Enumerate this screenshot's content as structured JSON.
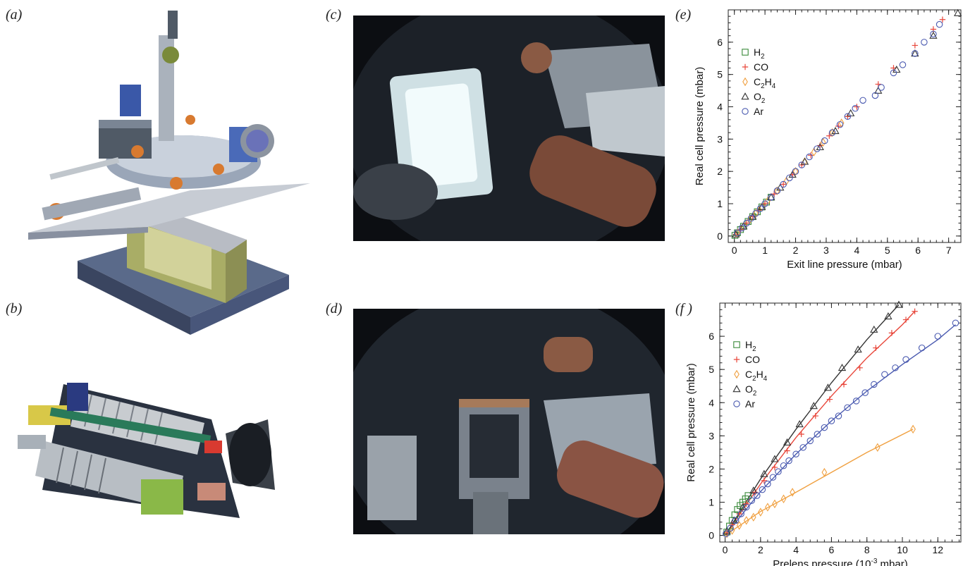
{
  "panels": {
    "a": "(a)",
    "b": "(b)",
    "c": "(c)",
    "d": "(d)",
    "e": "(e)",
    "f": "(f )"
  },
  "images": {
    "a": "cad-render-of-experimental-apparatus",
    "b": "cad-cutaway-of-electron-analyser-lens",
    "c": "photo-of-reaction-cell-inside-chamber",
    "d": "photo-of-sample-holder-inside-chamber"
  },
  "chart_data": [
    {
      "id": "e",
      "type": "scatter",
      "xlabel": "Exit line pressure (mbar)",
      "ylabel": "Real cell pressure (mbar)",
      "xlim": [
        -0.2,
        7.4
      ],
      "ylim": [
        -0.2,
        7.0
      ],
      "xticks": [
        0,
        1,
        2,
        3,
        4,
        5,
        6,
        7
      ],
      "yticks": [
        0,
        1,
        2,
        3,
        4,
        5,
        6
      ],
      "legend_position": "top-left",
      "series": [
        {
          "name": "H2",
          "sub": "2",
          "base": "H",
          "marker": "square",
          "color": "#3a8a3a",
          "x": [
            0.02,
            0.1,
            0.2,
            0.3,
            0.45,
            0.6,
            0.75,
            0.9,
            1.05,
            1.2
          ],
          "y": [
            0.02,
            0.1,
            0.2,
            0.3,
            0.45,
            0.6,
            0.75,
            0.9,
            1.05,
            1.2
          ]
        },
        {
          "name": "CO",
          "marker": "plus",
          "color": "#e8463a",
          "x": [
            0.05,
            0.2,
            0.4,
            0.6,
            0.8,
            1.0,
            1.3,
            1.6,
            1.9,
            2.2,
            2.5,
            2.8,
            3.1,
            3.4,
            3.7,
            4.0,
            4.7,
            5.2,
            5.9,
            6.5,
            6.8
          ],
          "y": [
            0.05,
            0.2,
            0.4,
            0.6,
            0.8,
            1.0,
            1.3,
            1.6,
            1.9,
            2.2,
            2.5,
            2.8,
            3.1,
            3.4,
            3.7,
            4.0,
            4.7,
            5.2,
            5.9,
            6.4,
            6.7
          ]
        },
        {
          "name": "C2H4",
          "sub": "2",
          "base": "C",
          "tail": "H",
          "tailsub": "4",
          "marker": "diamond",
          "color": "#f0a040",
          "x": [
            0.1,
            0.3,
            0.5,
            0.7,
            0.9,
            1.1,
            1.4,
            1.7,
            2.0,
            2.3,
            2.6,
            2.9,
            3.2,
            3.5
          ],
          "y": [
            0.1,
            0.3,
            0.5,
            0.7,
            0.9,
            1.1,
            1.4,
            1.7,
            2.0,
            2.3,
            2.6,
            2.9,
            3.2,
            3.5
          ]
        },
        {
          "name": "O2",
          "sub": "2",
          "base": "O",
          "marker": "triangle",
          "color": "#333333",
          "x": [
            0.05,
            0.3,
            0.6,
            0.9,
            1.2,
            1.5,
            1.9,
            2.3,
            2.8,
            3.3,
            3.8,
            4.7,
            5.3,
            5.9,
            6.5,
            7.3
          ],
          "y": [
            0.05,
            0.3,
            0.6,
            0.9,
            1.2,
            1.5,
            1.9,
            2.3,
            2.75,
            3.25,
            3.8,
            4.5,
            5.15,
            5.65,
            6.2,
            6.9
          ]
        },
        {
          "name": "Ar",
          "marker": "circle",
          "color": "#4a5ab0",
          "x": [
            0.1,
            0.25,
            0.4,
            0.55,
            0.7,
            0.85,
            1.0,
            1.2,
            1.4,
            1.6,
            1.8,
            2.0,
            2.2,
            2.45,
            2.7,
            2.95,
            3.2,
            3.45,
            3.7,
            3.95,
            4.2,
            4.6,
            4.8,
            5.2,
            5.5,
            5.9,
            6.2,
            6.5,
            6.7
          ],
          "y": [
            0.1,
            0.25,
            0.4,
            0.55,
            0.7,
            0.85,
            1.0,
            1.2,
            1.4,
            1.6,
            1.8,
            2.0,
            2.2,
            2.45,
            2.7,
            2.95,
            3.2,
            3.45,
            3.7,
            3.95,
            4.2,
            4.35,
            4.6,
            5.05,
            5.3,
            5.65,
            6.0,
            6.25,
            6.55
          ]
        }
      ]
    },
    {
      "id": "f",
      "type": "scatter",
      "xlabel": "Prelens pressure (10-3 mbar)",
      "xlabel_base": "Prelens pressure (10",
      "xlabel_sup": "-3",
      "xlabel_tail": " mbar)",
      "ylabel": "Real cell pressure (mbar)",
      "xlim": [
        -0.3,
        13.3
      ],
      "ylim": [
        -0.2,
        7.0
      ],
      "xticks": [
        0,
        2,
        4,
        6,
        8,
        10,
        12
      ],
      "yticks": [
        0,
        1,
        2,
        3,
        4,
        5,
        6
      ],
      "legend_position": "top-left",
      "series": [
        {
          "name": "H2",
          "sub": "2",
          "base": "H",
          "marker": "square",
          "color": "#3a8a3a",
          "x": [
            0.1,
            0.25,
            0.4,
            0.55,
            0.7,
            0.85,
            1.0,
            1.15,
            1.3
          ],
          "y": [
            0.1,
            0.28,
            0.45,
            0.62,
            0.78,
            0.9,
            1.0,
            1.1,
            1.2
          ]
        },
        {
          "name": "CO",
          "marker": "plus",
          "color": "#e8463a",
          "x": [
            0.1,
            0.4,
            0.8,
            1.2,
            1.7,
            2.2,
            2.8,
            3.5,
            4.3,
            5.1,
            5.9,
            6.7,
            7.6,
            8.5,
            9.4,
            10.2,
            10.7
          ],
          "y": [
            0.08,
            0.32,
            0.65,
            0.95,
            1.3,
            1.65,
            2.05,
            2.55,
            3.05,
            3.6,
            4.1,
            4.55,
            5.05,
            5.65,
            6.1,
            6.5,
            6.75
          ],
          "fit": [
            [
              0,
              0
            ],
            [
              2,
              1.55
            ],
            [
              4,
              2.95
            ],
            [
              6,
              4.2
            ],
            [
              8,
              5.35
            ],
            [
              10,
              6.35
            ],
            [
              10.7,
              6.75
            ]
          ]
        },
        {
          "name": "C2H4",
          "sub": "2",
          "base": "C",
          "tail": "H",
          "tailsub": "4",
          "marker": "diamond",
          "color": "#f0a040",
          "x": [
            0.1,
            0.4,
            0.8,
            1.2,
            1.6,
            2.0,
            2.4,
            2.8,
            3.3,
            3.8,
            5.6,
            8.6,
            10.6
          ],
          "y": [
            0.05,
            0.15,
            0.3,
            0.45,
            0.55,
            0.7,
            0.85,
            0.95,
            1.1,
            1.3,
            1.9,
            2.65,
            3.2
          ],
          "fit": [
            [
              0,
              0
            ],
            [
              2,
              0.72
            ],
            [
              4,
              1.3
            ],
            [
              6,
              1.9
            ],
            [
              8,
              2.5
            ],
            [
              10.6,
              3.2
            ]
          ]
        },
        {
          "name": "O2",
          "sub": "2",
          "base": "O",
          "marker": "triangle",
          "color": "#333333",
          "x": [
            0.1,
            0.5,
            1.0,
            1.6,
            2.2,
            2.8,
            3.5,
            4.2,
            5.0,
            5.8,
            6.6,
            7.5,
            8.4,
            9.2,
            9.8
          ],
          "y": [
            0.12,
            0.45,
            0.85,
            1.35,
            1.85,
            2.3,
            2.8,
            3.35,
            3.9,
            4.45,
            5.05,
            5.6,
            6.2,
            6.6,
            6.95
          ],
          "fit": [
            [
              0,
              0
            ],
            [
              2,
              1.7
            ],
            [
              4,
              3.2
            ],
            [
              6,
              4.6
            ],
            [
              8,
              5.9
            ],
            [
              9.8,
              6.95
            ]
          ]
        },
        {
          "name": "Ar",
          "marker": "circle",
          "color": "#4a5ab0",
          "x": [
            0.05,
            0.3,
            0.6,
            0.9,
            1.2,
            1.5,
            1.8,
            2.1,
            2.4,
            2.7,
            3.0,
            3.3,
            3.6,
            4.0,
            4.4,
            4.8,
            5.2,
            5.6,
            6.0,
            6.4,
            6.9,
            7.4,
            7.9,
            8.4,
            9.0,
            9.6,
            10.2,
            11.1,
            12.0,
            13.0
          ],
          "y": [
            0.05,
            0.22,
            0.45,
            0.65,
            0.85,
            1.05,
            1.2,
            1.38,
            1.55,
            1.75,
            1.92,
            2.1,
            2.25,
            2.45,
            2.65,
            2.85,
            3.05,
            3.25,
            3.45,
            3.6,
            3.85,
            4.05,
            4.3,
            4.55,
            4.85,
            5.05,
            5.3,
            5.65,
            6.0,
            6.4
          ],
          "fit": [
            [
              0,
              0
            ],
            [
              2,
              1.32
            ],
            [
              4,
              2.45
            ],
            [
              6,
              3.45
            ],
            [
              8,
              4.35
            ],
            [
              10,
              5.15
            ],
            [
              12,
              5.9
            ],
            [
              13,
              6.35
            ]
          ]
        }
      ]
    }
  ]
}
